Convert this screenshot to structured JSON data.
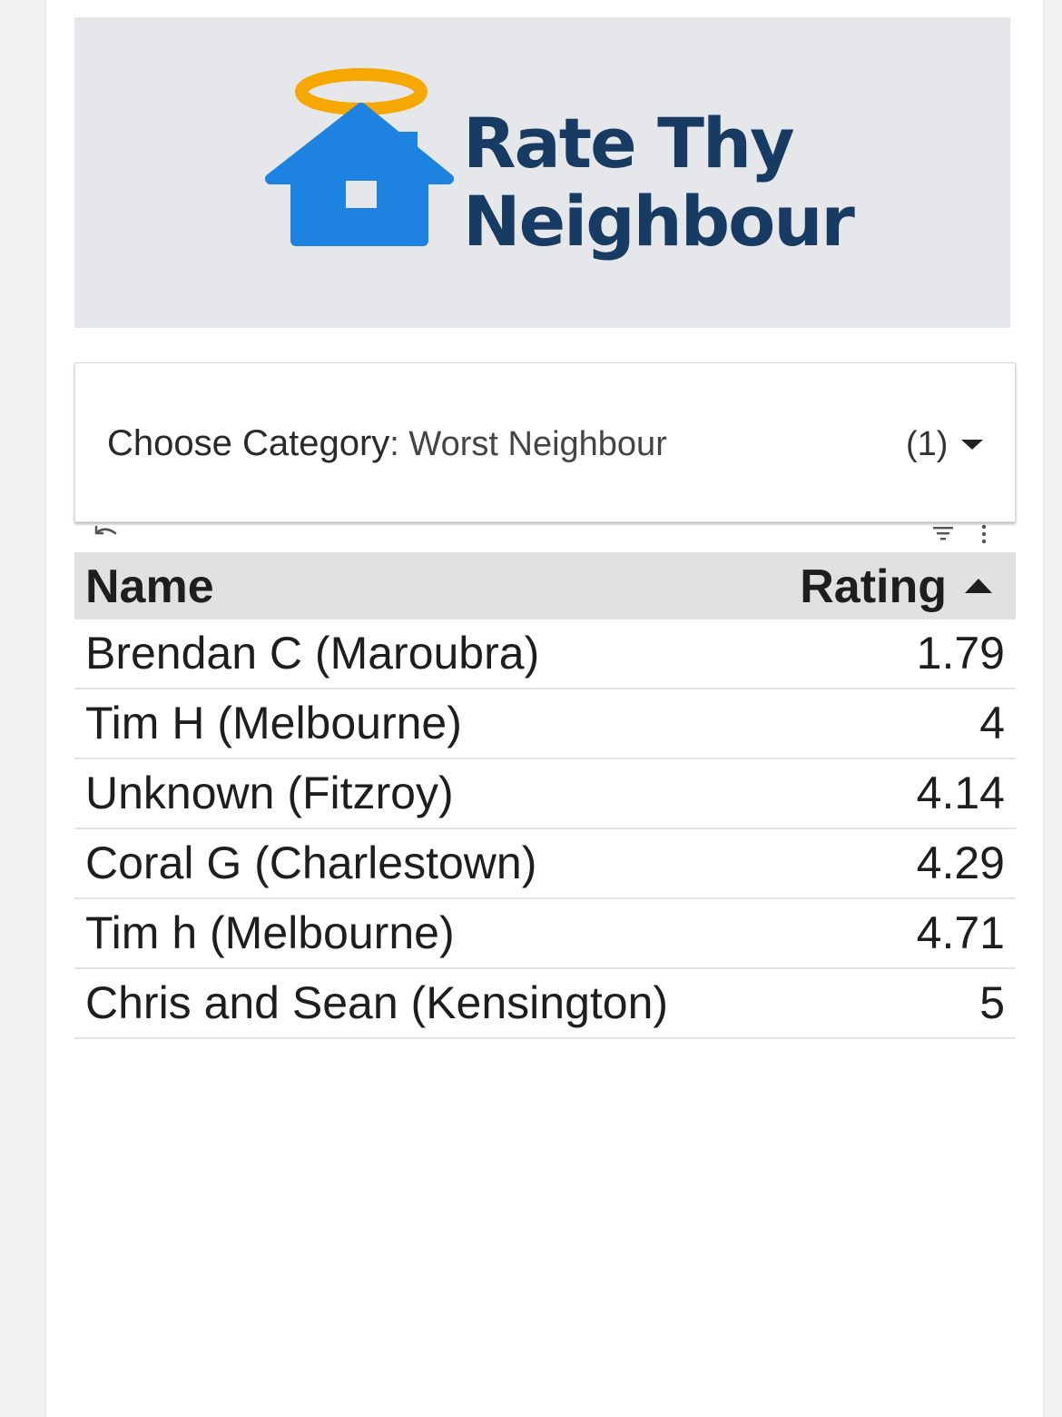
{
  "logo": {
    "line1": "Rate Thy",
    "line2": "Neighbour"
  },
  "colors": {
    "halo": "#f7a800",
    "house": "#1e82e0",
    "logo_text": "#173b63",
    "banner_bg": "#e6e7ea",
    "table_header_bg": "#e1e1e1"
  },
  "category_control": {
    "label": "Choose Category",
    "separator": ": ",
    "value": "Worst Neighbour",
    "count": "(1)"
  },
  "toolbar": {
    "undo_icon": "undo-icon",
    "filter_icon": "filter-icon",
    "more_icon": "more-vert-icon"
  },
  "table": {
    "columns": [
      "Name",
      "Rating"
    ],
    "sort": {
      "column": "Rating",
      "direction": "ascending"
    },
    "rows": [
      {
        "name": "Brendan C (Maroubra)",
        "rating": "1.79"
      },
      {
        "name": "Tim H (Melbourne)",
        "rating": "4"
      },
      {
        "name": "Unknown (Fitzroy)",
        "rating": "4.14"
      },
      {
        "name": "Coral G (Charlestown)",
        "rating": "4.29"
      },
      {
        "name": "Tim h (Melbourne)",
        "rating": "4.71"
      },
      {
        "name": "Chris and Sean (Kensington)",
        "rating": "5"
      }
    ]
  }
}
